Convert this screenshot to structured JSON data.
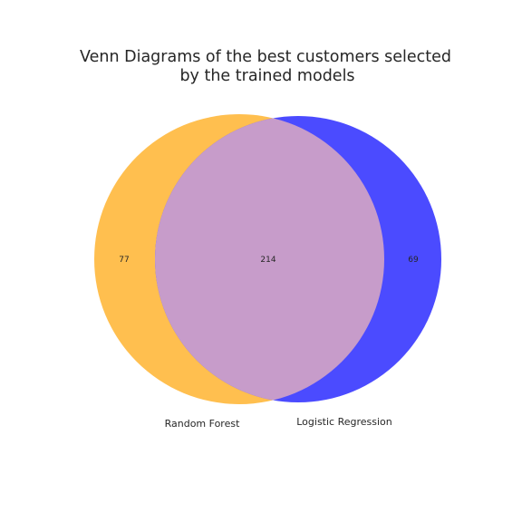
{
  "title": {
    "line1": "Venn Diagrams of the best customers selected",
    "line2": "by the trained models"
  },
  "venn": {
    "sets": [
      {
        "name": "Random Forest",
        "color": "#FFBF4F"
      },
      {
        "name": "Logistic Regression",
        "color": "#4B4BFF"
      }
    ],
    "overlap_color": "#C79CCA",
    "regions": {
      "random_forest_only": "77",
      "both": "214",
      "logistic_regression_only": "69"
    }
  }
}
